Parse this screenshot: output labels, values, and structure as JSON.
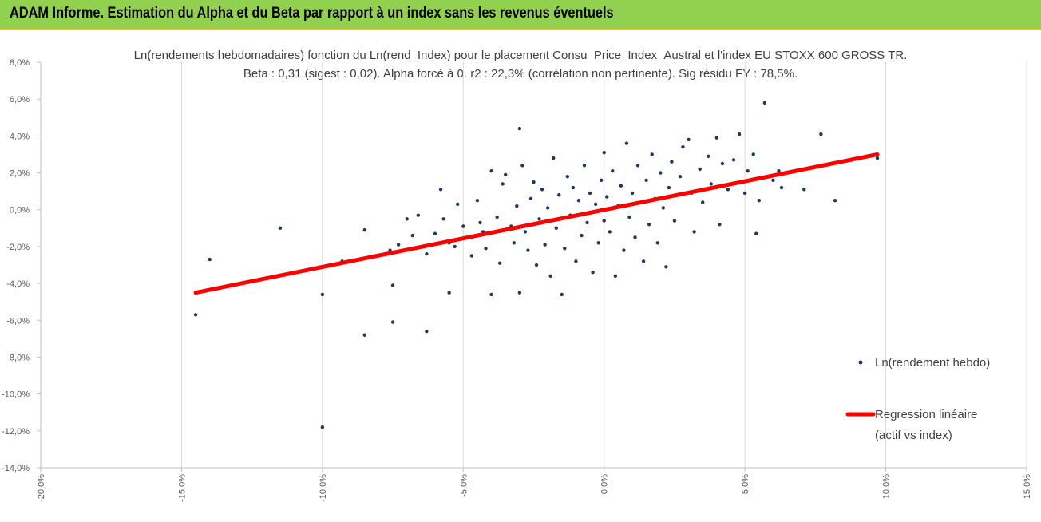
{
  "banner": {
    "title": "ADAM Informe. Estimation du Alpha et du Beta par rapport à un index sans les revenus éventuels"
  },
  "chart_data": {
    "type": "scatter",
    "title": "Ln(rendements hebdomadaires) fonction du Ln(rend_Index) pour le placement Consu_Price_Index_Austral et l'index EU STOXX 600 GROSS TR.",
    "subtitle": "Beta : 0,31 (sigest : 0,02).  Alpha forcé à 0. r2 : 22,3% (corrélation non pertinente). Sig résidu FY : 78,5%.",
    "xlim": [
      -0.2,
      0.15
    ],
    "ylim": [
      -0.14,
      0.08
    ],
    "x_ticks": [
      "-20,0%",
      "-15,0%",
      "-10,0%",
      "-5,0%",
      "0,0%",
      "5,0%",
      "10,0%",
      "15,0%"
    ],
    "y_ticks": [
      "8,0%",
      "6,0%",
      "4,0%",
      "2,0%",
      "0,0%",
      "-2,0%",
      "-4,0%",
      "-6,0%",
      "-8,0%",
      "-10,0%",
      "-12,0%",
      "-14,0%"
    ],
    "x_tick_values": [
      -0.2,
      -0.15,
      -0.1,
      -0.05,
      0.0,
      0.05,
      0.1,
      0.15
    ],
    "y_tick_values": [
      0.08,
      0.06,
      0.04,
      0.02,
      0.0,
      -0.02,
      -0.04,
      -0.06,
      -0.08,
      -0.1,
      -0.12,
      -0.14
    ],
    "grid": "vertical",
    "legend_position": "right",
    "series": [
      {
        "name": "Ln(rendement hebdo)",
        "kind": "scatter",
        "color": "#1f3864",
        "points": [
          [
            -0.145,
            -0.057
          ],
          [
            -0.14,
            -0.027
          ],
          [
            -0.115,
            -0.01
          ],
          [
            -0.1,
            -0.118
          ],
          [
            -0.1,
            -0.046
          ],
          [
            -0.093,
            -0.028
          ],
          [
            -0.085,
            -0.068
          ],
          [
            -0.085,
            -0.011
          ],
          [
            -0.076,
            -0.022
          ],
          [
            -0.075,
            -0.041
          ],
          [
            -0.075,
            -0.061
          ],
          [
            -0.073,
            -0.019
          ],
          [
            -0.07,
            -0.005
          ],
          [
            -0.068,
            -0.014
          ],
          [
            -0.066,
            -0.003
          ],
          [
            -0.063,
            -0.066
          ],
          [
            -0.063,
            -0.024
          ],
          [
            -0.06,
            -0.013
          ],
          [
            -0.058,
            0.011
          ],
          [
            -0.057,
            -0.005
          ],
          [
            -0.055,
            -0.045
          ],
          [
            -0.055,
            -0.018
          ],
          [
            -0.053,
            -0.02
          ],
          [
            -0.052,
            0.003
          ],
          [
            -0.05,
            -0.009
          ],
          [
            -0.048,
            -0.015
          ],
          [
            -0.047,
            -0.025
          ],
          [
            -0.045,
            0.005
          ],
          [
            -0.044,
            -0.007
          ],
          [
            -0.043,
            -0.012
          ],
          [
            -0.042,
            -0.021
          ],
          [
            -0.04,
            -0.046
          ],
          [
            -0.04,
            0.021
          ],
          [
            -0.038,
            -0.004
          ],
          [
            -0.037,
            -0.029
          ],
          [
            -0.036,
            0.014
          ],
          [
            -0.035,
            0.019
          ],
          [
            -0.033,
            -0.009
          ],
          [
            -0.032,
            -0.018
          ],
          [
            -0.031,
            0.002
          ],
          [
            -0.03,
            0.044
          ],
          [
            -0.03,
            -0.045
          ],
          [
            -0.029,
            0.024
          ],
          [
            -0.028,
            -0.012
          ],
          [
            -0.027,
            -0.022
          ],
          [
            -0.026,
            0.006
          ],
          [
            -0.025,
            0.015
          ],
          [
            -0.024,
            -0.03
          ],
          [
            -0.023,
            -0.005
          ],
          [
            -0.022,
            0.011
          ],
          [
            -0.021,
            -0.019
          ],
          [
            -0.02,
            0.001
          ],
          [
            -0.019,
            -0.036
          ],
          [
            -0.018,
            0.028
          ],
          [
            -0.017,
            -0.01
          ],
          [
            -0.016,
            0.008
          ],
          [
            -0.015,
            -0.046
          ],
          [
            -0.014,
            -0.021
          ],
          [
            -0.013,
            0.018
          ],
          [
            -0.012,
            -0.003
          ],
          [
            -0.011,
            0.012
          ],
          [
            -0.01,
            -0.028
          ],
          [
            -0.009,
            0.005
          ],
          [
            -0.008,
            -0.014
          ],
          [
            -0.007,
            0.024
          ],
          [
            -0.006,
            -0.007
          ],
          [
            -0.005,
            0.009
          ],
          [
            -0.004,
            -0.034
          ],
          [
            -0.003,
            0.003
          ],
          [
            -0.002,
            -0.018
          ],
          [
            -0.001,
            0.016
          ],
          [
            0.0,
            -0.006
          ],
          [
            0.0,
            0.031
          ],
          [
            0.001,
            0.007
          ],
          [
            0.002,
            -0.012
          ],
          [
            0.003,
            0.021
          ],
          [
            0.004,
            -0.036
          ],
          [
            0.005,
            0.002
          ],
          [
            0.006,
            0.013
          ],
          [
            0.007,
            -0.022
          ],
          [
            0.008,
            0.036
          ],
          [
            0.009,
            -0.004
          ],
          [
            0.01,
            0.009
          ],
          [
            0.011,
            -0.015
          ],
          [
            0.012,
            0.024
          ],
          [
            0.013,
            0.004
          ],
          [
            0.014,
            -0.028
          ],
          [
            0.015,
            0.016
          ],
          [
            0.016,
            -0.008
          ],
          [
            0.017,
            0.03
          ],
          [
            0.018,
            0.006
          ],
          [
            0.019,
            -0.018
          ],
          [
            0.02,
            0.02
          ],
          [
            0.021,
            0.001
          ],
          [
            0.022,
            -0.031
          ],
          [
            0.023,
            0.012
          ],
          [
            0.024,
            0.026
          ],
          [
            0.025,
            -0.006
          ],
          [
            0.027,
            0.018
          ],
          [
            0.028,
            0.034
          ],
          [
            0.03,
            0.038
          ],
          [
            0.031,
            0.009
          ],
          [
            0.032,
            -0.012
          ],
          [
            0.034,
            0.022
          ],
          [
            0.035,
            0.004
          ],
          [
            0.037,
            0.029
          ],
          [
            0.038,
            0.014
          ],
          [
            0.04,
            0.039
          ],
          [
            0.041,
            -0.008
          ],
          [
            0.042,
            0.025
          ],
          [
            0.044,
            0.011
          ],
          [
            0.046,
            0.027
          ],
          [
            0.048,
            0.041
          ],
          [
            0.05,
            0.009
          ],
          [
            0.051,
            0.021
          ],
          [
            0.053,
            0.03
          ],
          [
            0.054,
            -0.013
          ],
          [
            0.055,
            0.005
          ],
          [
            0.057,
            0.058
          ],
          [
            0.06,
            0.016
          ],
          [
            0.062,
            0.021
          ],
          [
            0.063,
            0.012
          ],
          [
            0.071,
            0.011
          ],
          [
            0.077,
            0.041
          ],
          [
            0.082,
            0.005
          ],
          [
            0.097,
            0.028
          ],
          [
            0.097,
            0.03
          ]
        ]
      },
      {
        "name": "Regression linéaire (actif vs index)",
        "kind": "line",
        "color": "#ff0000",
        "points": [
          [
            -0.145,
            -0.045
          ],
          [
            0.097,
            0.03
          ]
        ]
      }
    ]
  }
}
